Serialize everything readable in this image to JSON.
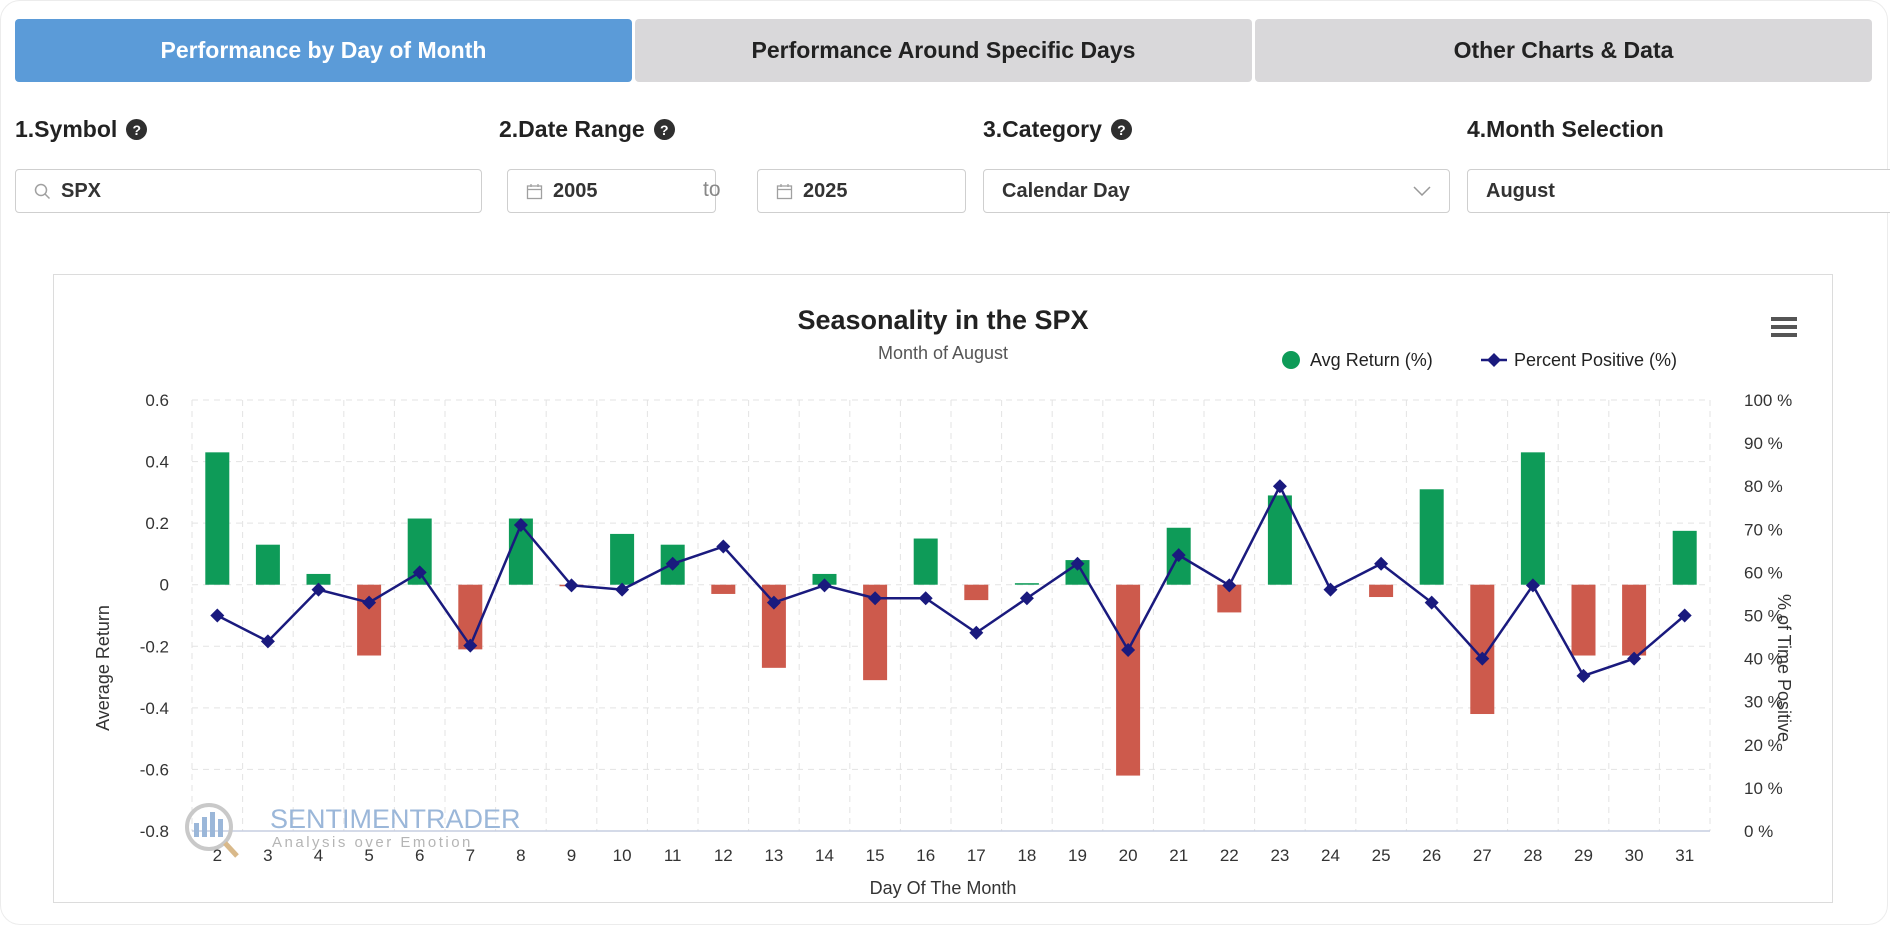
{
  "tabs": [
    {
      "label": "Performance by Day of Month",
      "active": true
    },
    {
      "label": "Performance Around Specific Days",
      "active": false
    },
    {
      "label": "Other Charts & Data",
      "active": false
    }
  ],
  "controls": {
    "symbol": {
      "label": "1.Symbol",
      "value": "SPX",
      "help": "?"
    },
    "date_range": {
      "label": "2.Date Range",
      "from": "2005",
      "to": "2025",
      "separator": "to",
      "help": "?"
    },
    "category": {
      "label": "3.Category",
      "value": "Calendar Day",
      "help": "?"
    },
    "month": {
      "label": "4.Month Selection",
      "value": "August"
    }
  },
  "watermark": {
    "name": "SENTIMENTRADER",
    "tagline": "Analysis over Emotion"
  },
  "colors": {
    "accent": "#5b9bd8",
    "positive": "#0e9b58",
    "negative": "#cd5a4c",
    "line": "#1a1a7e"
  },
  "chart_data": {
    "type": "bar",
    "title": "Seasonality in the SPX",
    "subtitle": "Month of August",
    "xlabel": "Day Of The Month",
    "ylabel": "Average Return",
    "y2label": "% of Time Positive",
    "ylim": [
      -0.8,
      0.6
    ],
    "y_ticks": [
      "0.6",
      "0.4",
      "0.2",
      "0",
      "-0.2",
      "-0.4",
      "-0.6",
      "-0.8"
    ],
    "y2lim": [
      0,
      100
    ],
    "y2_ticks": [
      "100 %",
      "90 %",
      "80 %",
      "70 %",
      "60 %",
      "50 %",
      "40 %",
      "30 %",
      "20 %",
      "10 %",
      "0 %"
    ],
    "categories": [
      "2",
      "3",
      "4",
      "5",
      "6",
      "7",
      "8",
      "9",
      "10",
      "11",
      "12",
      "13",
      "14",
      "15",
      "16",
      "17",
      "18",
      "19",
      "20",
      "21",
      "22",
      "23",
      "24",
      "25",
      "26",
      "27",
      "28",
      "29",
      "30",
      "31"
    ],
    "grid": true,
    "legend_position": "top-right",
    "series": [
      {
        "name": "Avg Return (%)",
        "type": "bar",
        "values": [
          0.43,
          0.13,
          0.035,
          -0.23,
          0.215,
          -0.21,
          0.215,
          -0.005,
          0.165,
          0.13,
          -0.03,
          -0.27,
          0.035,
          -0.31,
          0.15,
          -0.05,
          0.005,
          0.08,
          -0.62,
          0.185,
          -0.09,
          0.29,
          0.0,
          -0.04,
          0.31,
          -0.42,
          0.43,
          -0.23,
          -0.23,
          0.175
        ]
      },
      {
        "name": "Percent Positive (%)",
        "type": "line",
        "values": [
          50,
          44,
          56,
          53,
          60,
          43,
          71,
          57,
          56,
          62,
          66,
          53,
          57,
          54,
          54,
          46,
          54,
          62,
          42,
          64,
          57,
          80,
          56,
          62,
          53,
          40,
          57,
          36,
          40,
          50
        ]
      }
    ]
  }
}
